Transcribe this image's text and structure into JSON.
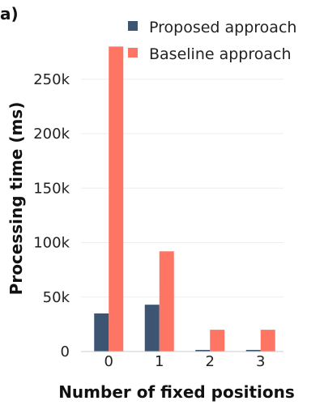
{
  "panel_label": "a)",
  "chart_data": {
    "type": "bar",
    "categories": [
      "0",
      "1",
      "2",
      "3"
    ],
    "series": [
      {
        "name": "Proposed approach",
        "color": "#3b5573",
        "values": [
          35000,
          43000,
          1500,
          1500
        ]
      },
      {
        "name": "Baseline approach",
        "color": "#fe7563",
        "values": [
          280000,
          92000,
          20000,
          20000
        ]
      }
    ],
    "xlabel": "Number of fixed positions",
    "ylabel": "Processing time (ms)",
    "ylim": [
      0,
      290000
    ],
    "yticks": [
      0,
      50000,
      100000,
      150000,
      200000,
      250000
    ],
    "ytick_labels": [
      "0",
      "50k",
      "100k",
      "150k",
      "200k",
      "250k"
    ],
    "grid": true,
    "legend_position": "top-right"
  }
}
